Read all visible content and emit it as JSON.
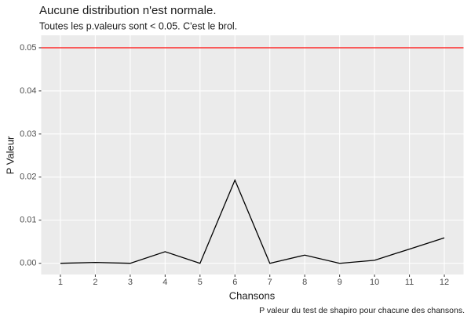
{
  "chart_data": {
    "type": "line",
    "title": "Aucune distribution n'est normale.",
    "subtitle": "Toutes les p.valeurs sont < 0.05. C'est le brol.",
    "x_label": "Chansons",
    "y_label": "P Valeur",
    "caption": "P valeur du test de shapiro pour chacune des chansons.",
    "x": [
      1,
      2,
      3,
      4,
      5,
      6,
      7,
      8,
      9,
      10,
      11,
      12
    ],
    "values": [
      0.0,
      0.0002,
      0.0,
      0.0027,
      0.0,
      0.0193,
      0.0,
      0.0019,
      0.0,
      0.0007,
      0.0033,
      0.0059
    ],
    "color": "#000000",
    "hline": {
      "value": 0.05,
      "color": "#ff0000"
    },
    "xlim": [
      0.45,
      12.55
    ],
    "ylim": [
      -0.0026,
      0.0529
    ],
    "xticks": [
      1,
      2,
      3,
      4,
      5,
      6,
      7,
      8,
      9,
      10,
      11,
      12
    ],
    "yticks": [
      {
        "value": 0,
        "label": "0.00"
      },
      {
        "value": 0.01,
        "label": "0.01"
      },
      {
        "value": 0.02,
        "label": "0.02"
      },
      {
        "value": 0.03,
        "label": "0.03"
      },
      {
        "value": 0.04,
        "label": "0.04"
      },
      {
        "value": 0.05,
        "label": "0.05"
      }
    ],
    "grid": true
  }
}
